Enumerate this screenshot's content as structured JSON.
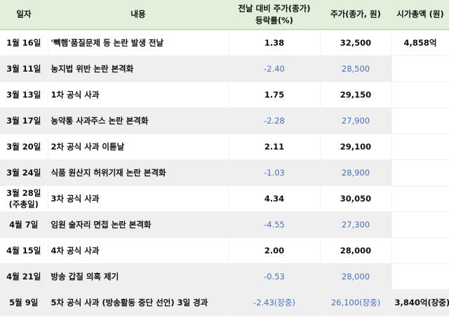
{
  "colors": {
    "header_bg": "#e2efda",
    "row_highlight": "#efefef",
    "negative": "#4472c4"
  },
  "headers": [
    "일자",
    "내용",
    "전날 대비 주가(종가) 등락률(%)",
    "주가(종가, 원)",
    "시가총액 (원)"
  ],
  "header_change_line1": "전날 대비 주가(종가)",
  "header_change_line2": "등락률(%)",
  "rows": [
    {
      "date": "1월 16일",
      "content": "'빽햄'품질문제 등 논란 발생 전날",
      "change": "1.38",
      "price": "32,500",
      "cap": "4,858억",
      "negative": false
    },
    {
      "date": "3월 11일",
      "content": "농지법 위반 논란 본격화",
      "change": "-2.40",
      "price": "28,500",
      "cap": "",
      "negative": true
    },
    {
      "date": "3월 13일",
      "content": "1차 공식 사과",
      "change": "1.75",
      "price": "29,150",
      "cap": "",
      "negative": false
    },
    {
      "date": "3월 17일",
      "content": "농약통 사과주스 논란 본격화",
      "change": "-2.28",
      "price": "27,900",
      "cap": "",
      "negative": true
    },
    {
      "date": "3월 20일",
      "content": "2차 공식 사과 이튿날",
      "change": "2.11",
      "price": "29,100",
      "cap": "",
      "negative": false
    },
    {
      "date": "3월 24일",
      "content": "식품 원산지 허위기재 논란 본격화",
      "change": "-1.03",
      "price": "28,900",
      "cap": "",
      "negative": true
    },
    {
      "date": "3월 28일",
      "date2": "(주총일)",
      "content": "3차 공식 사과",
      "change": "4.34",
      "price": "30,050",
      "cap": "",
      "negative": false
    },
    {
      "date": "4월 7일",
      "content": "임원 술자리 면접 논란 본격화",
      "change": "-4.55",
      "price": "27,300",
      "cap": "",
      "negative": true
    },
    {
      "date": "4월 15일",
      "content": "4차 공식 사과",
      "change": "2.00",
      "price": "28,000",
      "cap": "",
      "negative": false
    },
    {
      "date": "4월 21일",
      "content": "방송 갑질 의혹 제기",
      "change": "-0.53",
      "price": "28,000",
      "cap": "",
      "negative": true
    },
    {
      "date": "5월 9일",
      "content": "5차 공식 사과 (방송활동 중단 선언) 3일 경과",
      "change": "-2.43(장중)",
      "price": "26,100(장중)",
      "cap": "3,840억(장중)",
      "negative": true
    }
  ]
}
